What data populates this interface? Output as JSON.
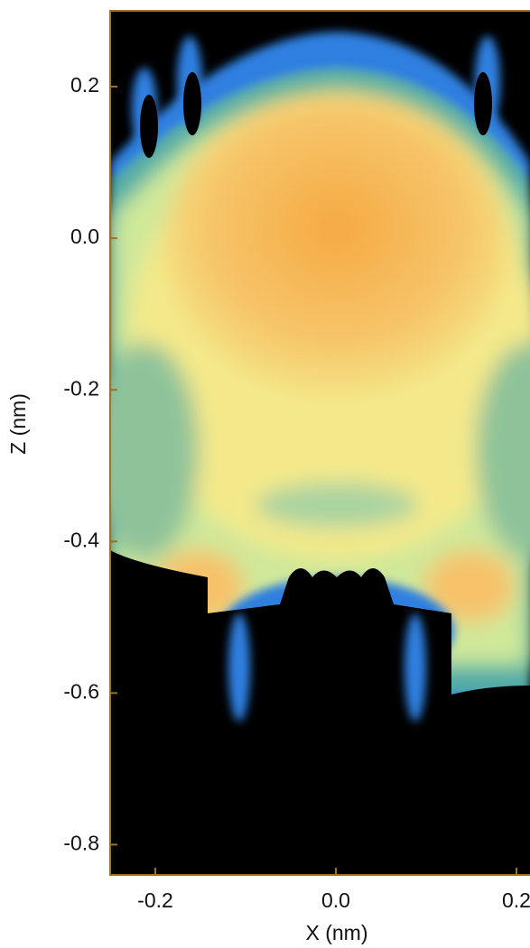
{
  "chart_data": {
    "type": "heatmap",
    "xlabel": "X (nm)",
    "ylabel": "Z (nm)",
    "xlim": [
      -0.25,
      0.25
    ],
    "ylim": [
      -0.84,
      0.3
    ],
    "xticks": [
      -0.2,
      {
        "value": 0,
        "label": "0.0"
      },
      0.2
    ],
    "yticks": [
      0.2,
      {
        "value": 0,
        "label": "0.0"
      },
      -0.2,
      -0.4,
      -0.6,
      -0.8
    ],
    "axis_color": "#9a7420"
  }
}
